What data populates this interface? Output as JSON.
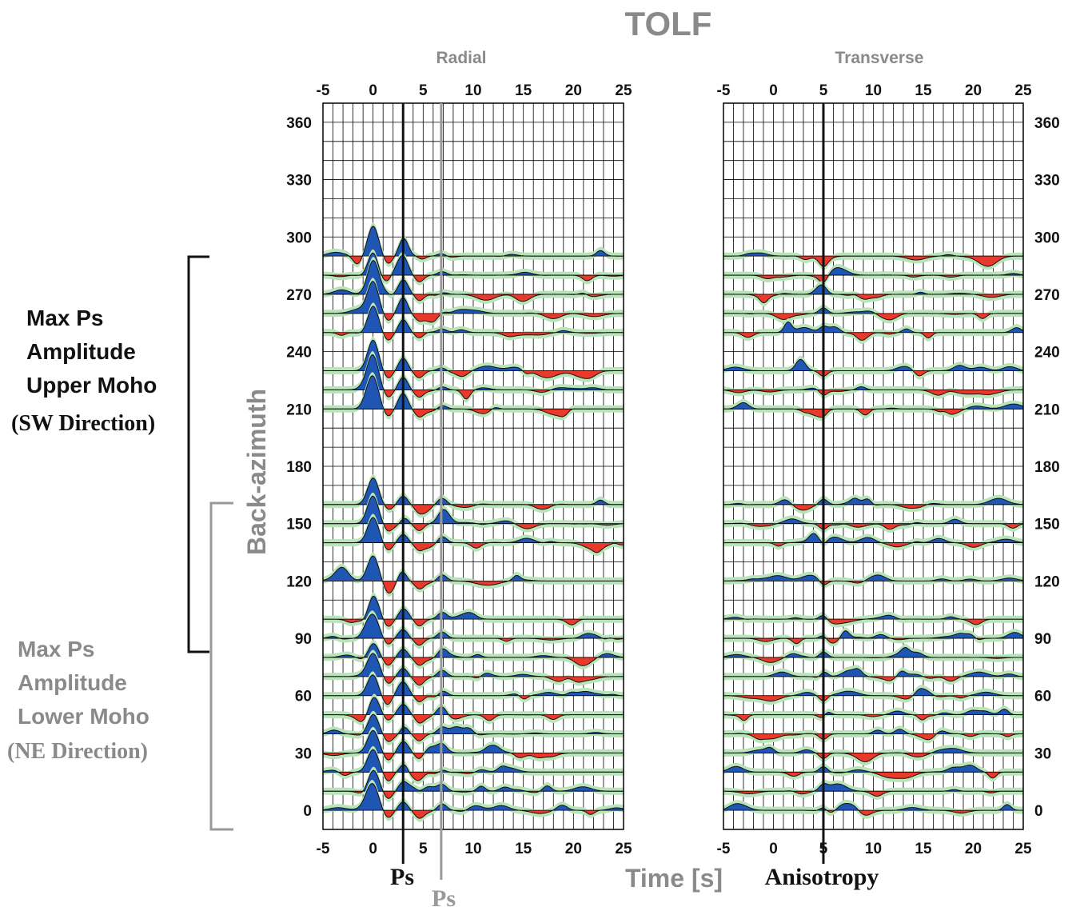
{
  "figure": {
    "title": "TOLF",
    "xlabel": "Time [s]",
    "ylabel": "Back-azimuth",
    "colors": {
      "positive_fill": "#1f56b3",
      "negative_fill": "#e8392a",
      "uncertainty_band": "#b9e3b8",
      "trace": "#111111",
      "grey_text": "#8a8a8a",
      "upper_bracket": "#111111",
      "lower_bracket": "#999999"
    }
  },
  "annotations": {
    "upper_group": {
      "line1": "Max Ps",
      "line2": "Amplitude",
      "line3": "Upper Moho",
      "line4": "(SW Direction)"
    },
    "lower_group": {
      "line1": "Max Ps",
      "line2": "Amplitude",
      "line3": "Lower Moho",
      "line4": "(NE Direction)"
    },
    "ps_black_label": "Ps",
    "ps_grey_label": "Ps",
    "anisotropy_label": "Anisotropy"
  },
  "chart_data": [
    {
      "type": "line",
      "title": "Radial",
      "xlabel": "Time [s]",
      "ylabel": "Back-azimuth",
      "xlim": [
        -5,
        25
      ],
      "ylim": [
        -10,
        370
      ],
      "xticks": [
        -5,
        0,
        5,
        10,
        15,
        20,
        25
      ],
      "yticks": [
        0,
        30,
        60,
        90,
        120,
        150,
        180,
        210,
        240,
        270,
        300,
        330,
        360
      ],
      "grid": true,
      "minor_x_step": 1,
      "marker_lines": [
        {
          "x": 3,
          "label": "Ps",
          "color": "#111111"
        },
        {
          "x": 6.8,
          "label": "Ps",
          "color": "#999999"
        }
      ],
      "traces_baz": [
        290,
        280,
        270,
        260,
        250,
        230,
        220,
        210,
        160,
        150,
        140,
        120,
        100,
        90,
        80,
        70,
        60,
        50,
        40,
        30,
        20,
        10,
        0
      ],
      "series": [
        {
          "name": "Positive amplitude (blue fill)"
        },
        {
          "name": "Negative amplitude (red fill)"
        }
      ]
    },
    {
      "type": "line",
      "title": "Transverse",
      "xlabel": "Time [s]",
      "ylabel": "Back-azimuth",
      "xlim": [
        -5,
        25
      ],
      "ylim": [
        -10,
        370
      ],
      "xticks": [
        -5,
        0,
        5,
        10,
        15,
        20,
        25
      ],
      "yticks": [
        0,
        30,
        60,
        90,
        120,
        150,
        180,
        210,
        240,
        270,
        300,
        330,
        360
      ],
      "grid": true,
      "minor_x_step": 1,
      "marker_lines": [
        {
          "x": 5,
          "label": "Anisotropy",
          "color": "#111111"
        }
      ],
      "traces_baz": [
        290,
        280,
        270,
        260,
        250,
        230,
        220,
        210,
        160,
        150,
        140,
        120,
        100,
        90,
        80,
        70,
        60,
        50,
        40,
        30,
        20,
        10,
        0
      ],
      "series": [
        {
          "name": "Positive amplitude (blue fill)"
        },
        {
          "name": "Negative amplitude (red fill)"
        }
      ]
    }
  ]
}
